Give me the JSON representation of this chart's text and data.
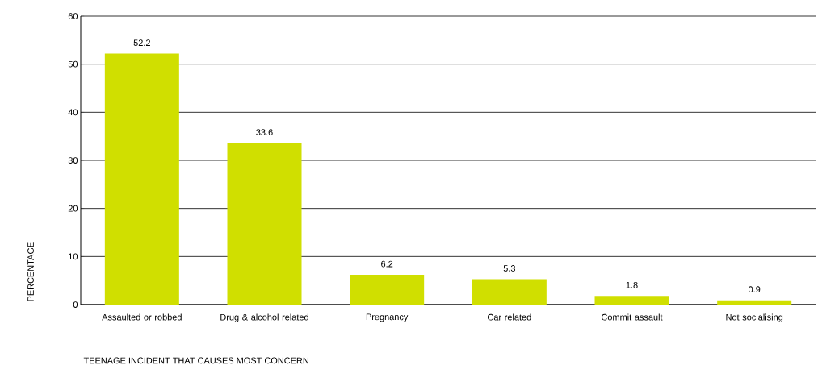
{
  "chart_data": {
    "type": "bar",
    "xlabel": "TEENAGE INCIDENT THAT CAUSES MOST CONCERN",
    "ylabel": "PERCENTAGE",
    "categories": [
      "Assaulted or robbed",
      "Drug & alcohol related",
      "Pregnancy",
      "Car related",
      "Commit assault",
      "Not socialising"
    ],
    "values": [
      52.2,
      33.6,
      6.2,
      5.3,
      1.8,
      0.9
    ],
    "color": "#d0df00",
    "ylim": [
      0,
      60
    ],
    "yticks": [
      0,
      10,
      20,
      30,
      40,
      50,
      60
    ],
    "grid": "y",
    "data_labels": true
  }
}
